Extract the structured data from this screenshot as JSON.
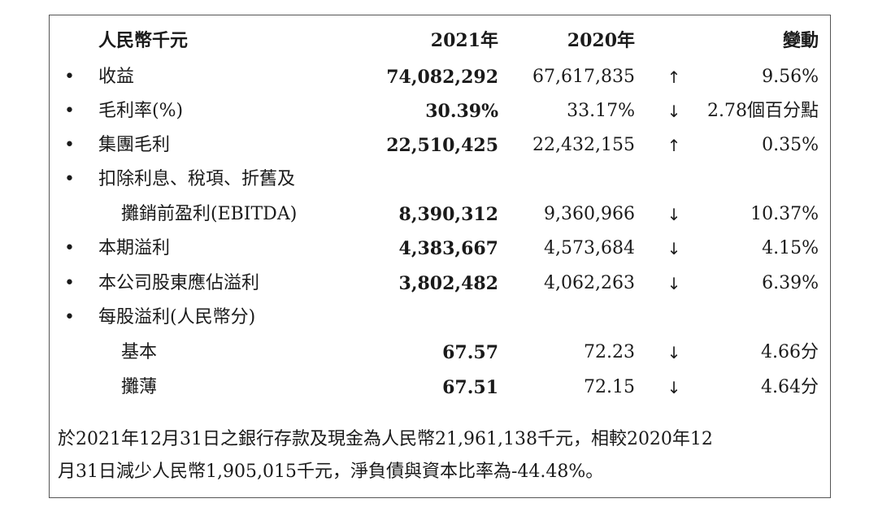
{
  "header": {
    "label": "人民幣千元",
    "col_2021": "2021年",
    "col_2020": "2020年",
    "col_change": "變動"
  },
  "rows": [
    {
      "bullet": "•",
      "label": "收益",
      "v2021": "74,082,292",
      "v2020": "67,617,835",
      "arrow": "↑",
      "change": "9.56%"
    },
    {
      "bullet": "•",
      "label": "毛利率(%)",
      "v2021": "30.39%",
      "v2020": "33.17%",
      "arrow": "↓",
      "change": "2.78個百分點"
    },
    {
      "bullet": "•",
      "label": "集團毛利",
      "v2021": "22,510,425",
      "v2020": "22,432,155",
      "arrow": "↑",
      "change": "0.35%"
    },
    {
      "bullet": "•",
      "label": "扣除利息、稅項、折舊及",
      "v2021": "",
      "v2020": "",
      "arrow": "",
      "change": ""
    },
    {
      "bullet": "",
      "label": "攤銷前盈利(EBITDA)",
      "v2021": "8,390,312",
      "v2020": "9,360,966",
      "arrow": "↓",
      "change": "10.37%"
    },
    {
      "bullet": "•",
      "label": "本期溢利",
      "v2021": "4,383,667",
      "v2020": "4,573,684",
      "arrow": "↓",
      "change": "4.15%"
    },
    {
      "bullet": "•",
      "label": "本公司股東應佔溢利",
      "v2021": "3,802,482",
      "v2020": "4,062,263",
      "arrow": "↓",
      "change": "6.39%"
    },
    {
      "bullet": "•",
      "label": "每股溢利(人民幣分)",
      "v2021": "",
      "v2020": "",
      "arrow": "",
      "change": ""
    },
    {
      "bullet": "",
      "label": "基本",
      "v2021": "67.57",
      "v2020": "72.23",
      "arrow": "↓",
      "change": "4.66分"
    },
    {
      "bullet": "",
      "label": "攤薄",
      "v2021": "67.51",
      "v2020": "72.15",
      "arrow": "↓",
      "change": "4.64分"
    }
  ],
  "footnote": {
    "line1": "於2021年12月31日之銀行存款及現金為人民幣21,961,138千元，相較2020年12",
    "line2": "月31日減少人民幣1,905,015千元，淨負債與資本比率為-44.48%。"
  }
}
